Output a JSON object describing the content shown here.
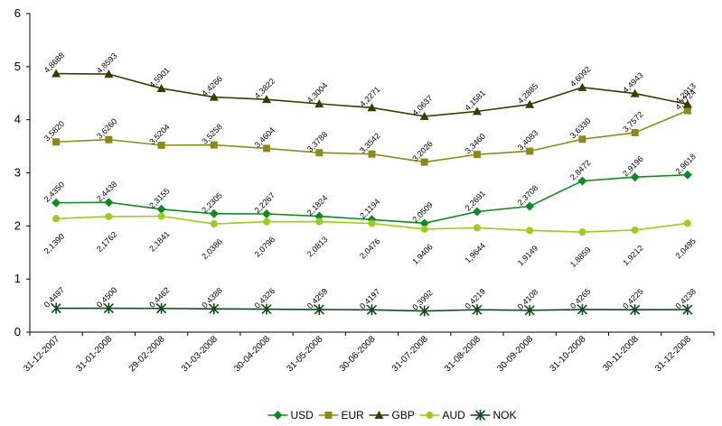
{
  "chart_data": {
    "type": "line",
    "title": "",
    "xlabel": "",
    "ylabel": "",
    "ylim": [
      0,
      6
    ],
    "yticks": [
      "0",
      "1",
      "2",
      "3",
      "4",
      "5",
      "6"
    ],
    "grid": false,
    "legend_position": "bottom",
    "categories": [
      "31-12-2007",
      "31-01-2008",
      "29-02-2008",
      "31-03-2008",
      "30-04-2008",
      "31-05-2008",
      "30-06-2008",
      "31-07-2008",
      "31-08-2008",
      "30-09-2008",
      "31-10-2008",
      "30-11-2008",
      "31-12-2008"
    ],
    "series": [
      {
        "name": "USD",
        "color": "#0f8a23",
        "marker": "diamond",
        "label_side": "above",
        "values": [
          2.435,
          2.4438,
          2.3155,
          2.2305,
          2.2267,
          2.1824,
          2.1194,
          2.0509,
          2.2691,
          2.3708,
          2.8472,
          2.9196,
          2.9618
        ],
        "labels": [
          "2,4350",
          "2,4438",
          "2,3155",
          "2,2305",
          "2,2267",
          "2,1824",
          "2,1194",
          "2,0509",
          "2,2691",
          "2,3708",
          "2,8472",
          "2,9196",
          "2,9618"
        ]
      },
      {
        "name": "EUR",
        "color": "#8c8a1a",
        "marker": "square",
        "label_side": "above",
        "values": [
          3.582,
          3.626,
          3.5204,
          3.5258,
          3.4604,
          3.3788,
          3.3542,
          3.2026,
          3.346,
          3.4083,
          3.633,
          3.7572,
          4.1724
        ],
        "labels": [
          "3,5820",
          "3,6260",
          "3,5204",
          "3,5258",
          "3,4604",
          "3,3788",
          "3,3542",
          "3,2026",
          "3,3460",
          "3,4083",
          "3,6330",
          "3,7572",
          "4,1724"
        ]
      },
      {
        "name": "GBP",
        "color": "#3b3b00",
        "marker": "triangle",
        "label_side": "above",
        "values": [
          4.8688,
          4.8593,
          4.5901,
          4.4266,
          4.3822,
          4.3004,
          4.2271,
          4.0637,
          4.1581,
          4.2885,
          4.6092,
          4.4943,
          4.2913
        ],
        "labels": [
          "4,8688",
          "4,8593",
          "4,5901",
          "4,4266",
          "4,3822",
          "4,3004",
          "4,2271",
          "4,0637",
          "4,1581",
          "4,2885",
          "4,6092",
          "4,4943",
          "4,2913"
        ]
      },
      {
        "name": "AUD",
        "color": "#9acd1e",
        "marker": "circle",
        "label_side": "below",
        "values": [
          2.139,
          2.1762,
          2.1841,
          2.0386,
          2.0796,
          2.0813,
          2.0476,
          1.9406,
          1.9644,
          1.9149,
          1.8859,
          1.9212,
          2.0495
        ],
        "labels": [
          "2,1390",
          "2,1762",
          "2,1841",
          "2,0386",
          "2,0796",
          "2,0813",
          "2,0476",
          "1,9406",
          "1,9644",
          "1,9149",
          "1,8859",
          "1,9212",
          "2,0495"
        ]
      },
      {
        "name": "NOK",
        "color": "#0f4a1c",
        "marker": "star",
        "label_side": "above",
        "values": [
          0.4497,
          0.45,
          0.4462,
          0.4388,
          0.4326,
          0.4259,
          0.4197,
          0.3992,
          0.4219,
          0.4108,
          0.4265,
          0.4225,
          0.4238
        ],
        "labels": [
          "0,4497",
          "0,4500",
          "0,4462",
          "0,4388",
          "0,4326",
          "0,4259",
          "0,4197",
          "0,3992",
          "0,4219",
          "0,4108",
          "0,4265",
          "0,4225",
          "0,4238"
        ]
      }
    ]
  }
}
